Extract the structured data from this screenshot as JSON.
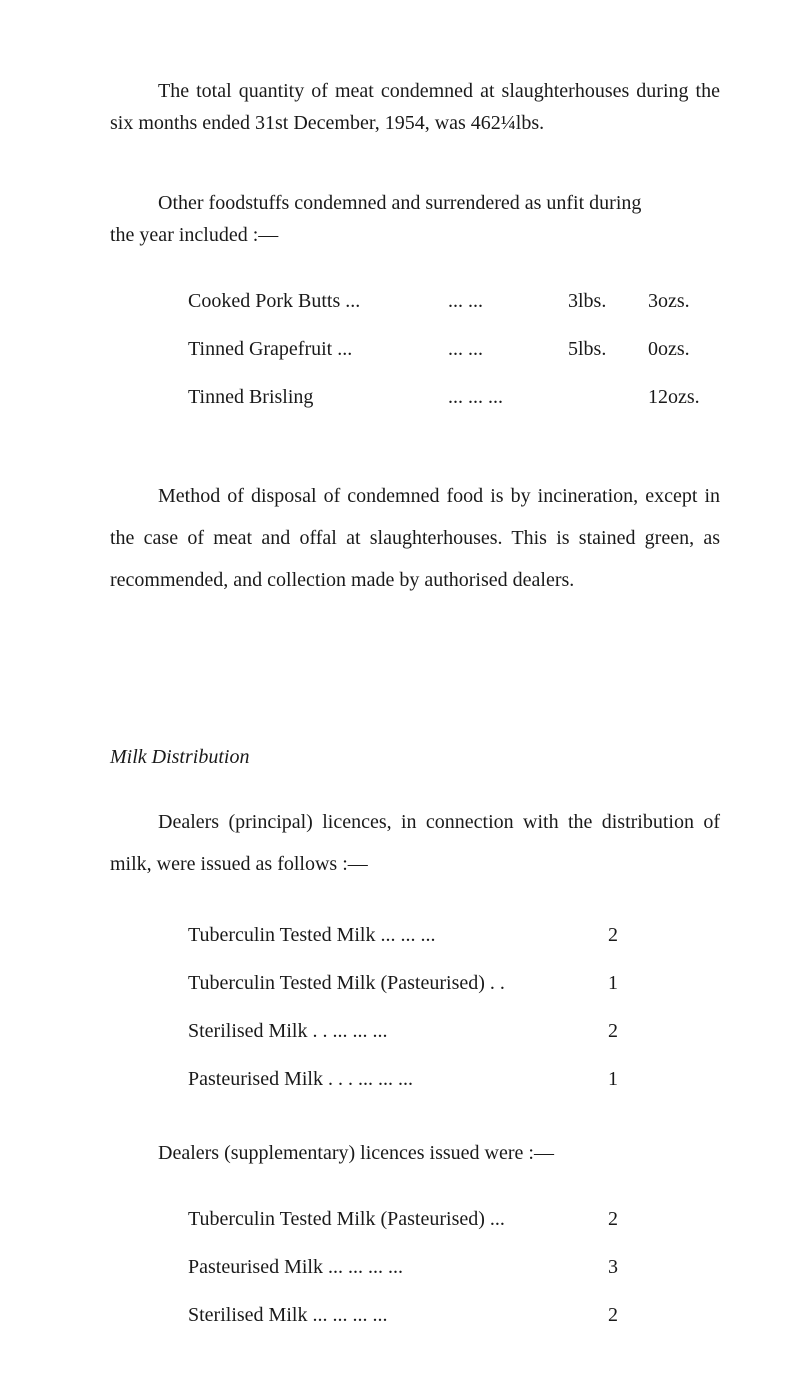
{
  "para1": "The total quantity of meat condemned at slaughterhouses during the six months ended 31st December, 1954, was 462¼lbs.",
  "para2_line1": "Other foodstuffs condemned and surrendered as unfit during",
  "para2_line2": "the year included :—",
  "foodstuffs": [
    {
      "item": "Cooked Pork Butts  ...",
      "dots": "...      ...",
      "lbs": "3lbs.",
      "ozs": "3ozs."
    },
    {
      "item": "Tinned Grapefruit   ...",
      "dots": "...      ...",
      "lbs": "5lbs.",
      "ozs": "0ozs."
    },
    {
      "item": "Tinned Brisling",
      "dots": "...      ...      ...",
      "lbs": "",
      "ozs": "12ozs."
    }
  ],
  "para3": "Method of disposal of condemned food is by incineration, except in the case of meat and offal at slaughterhouses. This is stained green, as recommended, and collection made by authorised dealers.",
  "milk_heading": "Milk Distribution",
  "para4": "Dealers (principal) licences, in connection with the distribution of milk, were issued as follows :—",
  "principal_licences": [
    {
      "label": "Tuberculin Tested Milk  ...        ...       ...",
      "value": "2"
    },
    {
      "label": "Tuberculin Tested Milk (Pasteurised)  . .",
      "value": "1"
    },
    {
      "label": "Sterilised Milk            . .       ...        ...       ...",
      "value": "2"
    },
    {
      "label": "Pasteurised Milk      . . .       ...        ...       ...",
      "value": "1"
    }
  ],
  "para5": "Dealers (supplementary) licences issued were :—",
  "supplementary_licences": [
    {
      "label": "Tuberculin Tested Milk (Pasteurised)   ...",
      "value": "2"
    },
    {
      "label": "Pasteurised Milk     ...        ...       ...       ...",
      "value": "3"
    },
    {
      "label": "Sterilised Milk          ...        ...       ...       ...",
      "value": "2"
    }
  ],
  "colors": {
    "background": "#ffffff",
    "text": "#1a1a1a"
  },
  "typography": {
    "body_fontsize": 20,
    "font_family": "Times New Roman"
  }
}
